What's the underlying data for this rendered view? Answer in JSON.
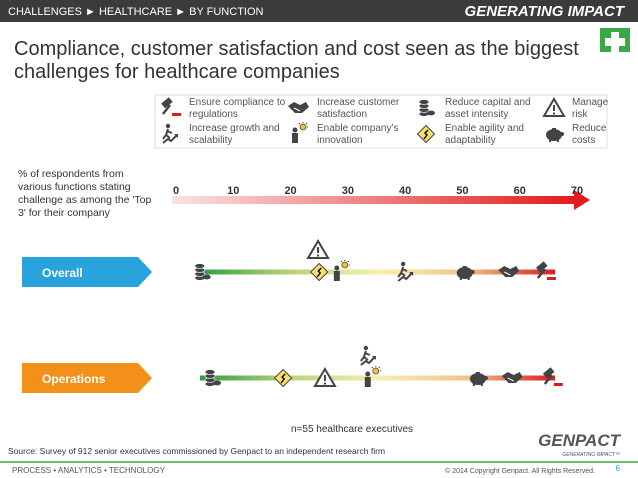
{
  "header": {
    "breadcrumb": "CHALLENGES ► HEALTHCARE ► BY FUNCTION",
    "logo": "GENERATING IMPACT"
  },
  "chart_data": {
    "type": "icon-strip",
    "title": "Compliance, customer satisfaction and cost seen as the biggest challenges for healthcare companies",
    "axis_label": "% of respondents from various functions stating challenge as among the 'Top 3' for their company",
    "xlim": [
      0,
      70
    ],
    "xticks": [
      0,
      10,
      20,
      30,
      40,
      50,
      60,
      70
    ],
    "categories": [
      "Overall",
      "Operations"
    ],
    "category_colors": [
      "#29a3dc",
      "#f39019"
    ],
    "series": [
      {
        "name": "Ensure compliance to regulations",
        "values": [
          64.4,
          65.6
        ]
      },
      {
        "name": "Increase customer satisfaction",
        "values": [
          58,
          58.6
        ]
      },
      {
        "name": "Reduce capital and asset intensity",
        "values": [
          4.5,
          6.3
        ]
      },
      {
        "name": "Manage risk",
        "values": [
          24.8,
          26
        ]
      },
      {
        "name": "Increase growth and scalability",
        "values": [
          40,
          33.5
        ]
      },
      {
        "name": "Enable company’s innovation",
        "values": [
          28.6,
          34
        ]
      },
      {
        "name": "Enable agility and adaptability",
        "values": [
          25,
          18.7
        ]
      },
      {
        "name": "Reduce costs",
        "values": [
          50.4,
          52.7
        ]
      }
    ],
    "note": "n=55 healthcare executives"
  },
  "footer": {
    "source": "Source: Survey of 912 senior executives commissioned by Genpact to an independent research firm",
    "brand": "GENPACT",
    "brand_tag": "GENERATING IMPACT™",
    "tagline": "PROCESS • ANALYTICS • TECHNOLOGY",
    "copyright": "© 2014 Copyright Genpact. All Rights Reserved.",
    "page": "6"
  }
}
